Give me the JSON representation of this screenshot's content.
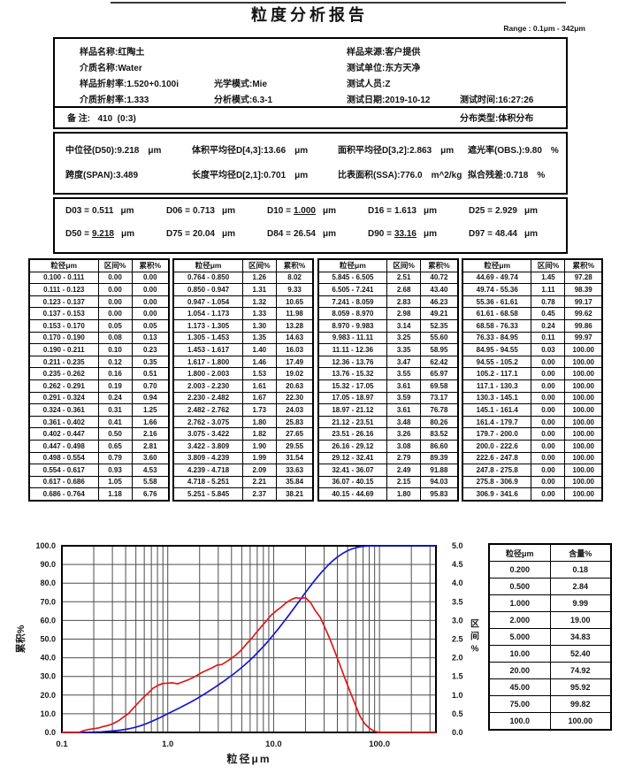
{
  "header": {
    "title": "粒度分析报告",
    "range": "Range : 0.1μm - 342μm"
  },
  "info1": {
    "sample_name": "样品名称:红陶土",
    "sample_source": "样品来源:客户提供",
    "medium_name": "介质名称:Water",
    "test_unit": "测试单位:东方天净",
    "sample_ri": "样品折射率:1.520+0.100i",
    "optical_mode": "光学模式:Mie",
    "tester": "测试人员:Z",
    "medium_ri": "介质折射率:1.333",
    "analysis_mode": "分析模式:6.3-1",
    "test_date": "测试日期:2019-10-12",
    "test_time": "测试时间:16:27:26",
    "remark": "备 注:   410  (0:3)",
    "dist_type": "分布类型:体积分布"
  },
  "metrics": [
    {
      "text": "中位径(D50):9.218",
      "unit": "μm"
    },
    {
      "text": "体积平均径D[4,3]:13.66",
      "unit": "μm"
    },
    {
      "text": "面积平均径D[3,2]:2.863",
      "unit": "μm"
    },
    {
      "text": "遮光率(OBS.):9.80",
      "unit": "%"
    },
    {
      "text": "跨度(SPAN):3.489",
      "unit": ""
    },
    {
      "text": "长度平均径D[2,1]:0.701",
      "unit": "μm"
    },
    {
      "text": "比表面积(SSA):776.0",
      "unit": "m^2/kg"
    },
    {
      "text": "拟合残差:0.718",
      "unit": "%"
    }
  ],
  "dvalues": [
    {
      "label": "D03 =",
      "value": "0.511",
      "unit": "μm",
      "underline": false
    },
    {
      "label": "D06 =",
      "value": "0.713",
      "unit": "μm",
      "underline": false
    },
    {
      "label": "D10 =",
      "value": "1.000",
      "unit": "μm",
      "underline": true
    },
    {
      "label": "D16 =",
      "value": "1.613",
      "unit": "μm",
      "underline": false
    },
    {
      "label": "D25 =",
      "value": "2.929",
      "unit": "μm",
      "underline": false
    },
    {
      "label": "D50 =",
      "value": "9.218",
      "unit": "μm",
      "underline": true
    },
    {
      "label": "D75 =",
      "value": "20.04",
      "unit": "μm",
      "underline": false
    },
    {
      "label": "D84 =",
      "value": "26.54",
      "unit": "μm",
      "underline": false
    },
    {
      "label": "D90 =",
      "value": "33.16",
      "unit": "μm",
      "underline": true
    },
    {
      "label": "D97 =",
      "value": "48.44",
      "unit": "μm",
      "underline": false
    }
  ],
  "distribution_table": {
    "headers": [
      "粒径μm",
      "区间%",
      "累积%"
    ],
    "groups": [
      [
        [
          "0.100 - 0.111",
          "0.00",
          "0.00"
        ],
        [
          "0.111 - 0.123",
          "0.00",
          "0.00"
        ],
        [
          "0.123 - 0.137",
          "0.00",
          "0.00"
        ],
        [
          "0.137 - 0.153",
          "0.00",
          "0.00"
        ],
        [
          "0.153 - 0.170",
          "0.05",
          "0.05"
        ],
        [
          "0.170 - 0.190",
          "0.08",
          "0.13"
        ],
        [
          "0.190 - 0.211",
          "0.10",
          "0.23"
        ],
        [
          "0.211 - 0.235",
          "0.12",
          "0.35"
        ],
        [
          "0.235 - 0.262",
          "0.16",
          "0.51"
        ],
        [
          "0.262 - 0.291",
          "0.19",
          "0.70"
        ],
        [
          "0.291 - 0.324",
          "0.24",
          "0.94"
        ],
        [
          "0.324 - 0.361",
          "0.31",
          "1.25"
        ],
        [
          "0.361 - 0.402",
          "0.41",
          "1.66"
        ],
        [
          "0.402 - 0.447",
          "0.50",
          "2.16"
        ],
        [
          "0.447 - 0.498",
          "0.65",
          "2.81"
        ],
        [
          "0.498 - 0.554",
          "0.79",
          "3.60"
        ],
        [
          "0.554 - 0.617",
          "0.93",
          "4.53"
        ],
        [
          "0.617 - 0.686",
          "1.05",
          "5.58"
        ],
        [
          "0.686 - 0.764",
          "1.18",
          "6.76"
        ]
      ],
      [
        [
          "0.764 - 0.850",
          "1.26",
          "8.02"
        ],
        [
          "0.850 - 0.947",
          "1.31",
          "9.33"
        ],
        [
          "0.947 - 1.054",
          "1.32",
          "10.65"
        ],
        [
          "1.054 - 1.173",
          "1.33",
          "11.98"
        ],
        [
          "1.173 - 1.305",
          "1.30",
          "13.28"
        ],
        [
          "1.305 - 1.453",
          "1.35",
          "14.63"
        ],
        [
          "1.453 - 1.617",
          "1.40",
          "16.03"
        ],
        [
          "1.617 - 1.800",
          "1.46",
          "17.49"
        ],
        [
          "1.800 - 2.003",
          "1.53",
          "19.02"
        ],
        [
          "2.003 - 2.230",
          "1.61",
          "20.63"
        ],
        [
          "2.230 - 2.482",
          "1.67",
          "22.30"
        ],
        [
          "2.482 - 2.762",
          "1.73",
          "24.03"
        ],
        [
          "2.762 - 3.075",
          "1.80",
          "25.83"
        ],
        [
          "3.075 - 3.422",
          "1.82",
          "27.65"
        ],
        [
          "3.422 - 3.809",
          "1.90",
          "29.55"
        ],
        [
          "3.809 - 4.239",
          "1.99",
          "31.54"
        ],
        [
          "4.239 - 4.718",
          "2.09",
          "33.63"
        ],
        [
          "4.718 - 5.251",
          "2.21",
          "35.84"
        ],
        [
          "5.251 - 5.845",
          "2.37",
          "38.21"
        ]
      ],
      [
        [
          "5.845 - 6.505",
          "2.51",
          "40.72"
        ],
        [
          "6.505 - 7.241",
          "2.68",
          "43.40"
        ],
        [
          "7.241 - 8.059",
          "2.83",
          "46.23"
        ],
        [
          "8.059 - 8.970",
          "2.98",
          "49.21"
        ],
        [
          "8.970 - 9.983",
          "3.14",
          "52.35"
        ],
        [
          "9.983 - 11.11",
          "3.25",
          "55.60"
        ],
        [
          "11.11 - 12.36",
          "3.35",
          "58.95"
        ],
        [
          "12.36 - 13.76",
          "3.47",
          "62.42"
        ],
        [
          "13.76 - 15.32",
          "3.55",
          "65.97"
        ],
        [
          "15.32 - 17.05",
          "3.61",
          "69.58"
        ],
        [
          "17.05 - 18.97",
          "3.59",
          "73.17"
        ],
        [
          "18.97 - 21.12",
          "3.61",
          "76.78"
        ],
        [
          "21.12 - 23.51",
          "3.48",
          "80.26"
        ],
        [
          "23.51 - 26.16",
          "3.26",
          "83.52"
        ],
        [
          "26.16 - 29.12",
          "3.08",
          "86.60"
        ],
        [
          "29.12 - 32.41",
          "2.79",
          "89.39"
        ],
        [
          "32.41 - 36.07",
          "2.49",
          "91.88"
        ],
        [
          "36.07 - 40.15",
          "2.15",
          "94.03"
        ],
        [
          "40.15 - 44.69",
          "1.80",
          "95.83"
        ]
      ],
      [
        [
          "44.69 - 49.74",
          "1.45",
          "97.28"
        ],
        [
          "49.74 - 55.36",
          "1.11",
          "98.39"
        ],
        [
          "55.36 - 61.61",
          "0.78",
          "99.17"
        ],
        [
          "61.61 - 68.58",
          "0.45",
          "99.62"
        ],
        [
          "68.58 - 76.33",
          "0.24",
          "99.86"
        ],
        [
          "76.33 - 84.95",
          "0.11",
          "99.97"
        ],
        [
          "84.95 - 94.55",
          "0.03",
          "100.00"
        ],
        [
          "94.55 - 105.2",
          "0.00",
          "100.00"
        ],
        [
          "105.2 - 117.1",
          "0.00",
          "100.00"
        ],
        [
          "117.1 - 130.3",
          "0.00",
          "100.00"
        ],
        [
          "130.3 - 145.1",
          "0.00",
          "100.00"
        ],
        [
          "145.1 - 161.4",
          "0.00",
          "100.00"
        ],
        [
          "161.4 - 179.7",
          "0.00",
          "100.00"
        ],
        [
          "179.7 - 200.0",
          "0.00",
          "100.00"
        ],
        [
          "200.0 - 222.6",
          "0.00",
          "100.00"
        ],
        [
          "222.6 - 247.8",
          "0.00",
          "100.00"
        ],
        [
          "247.8 - 275.8",
          "0.00",
          "100.00"
        ],
        [
          "275.8 - 306.9",
          "0.00",
          "100.00"
        ],
        [
          "306.9 - 341.6",
          "0.00",
          "100.00"
        ]
      ]
    ]
  },
  "content_table": {
    "headers": [
      "粒径μm",
      "含量%"
    ],
    "rows": [
      [
        "0.200",
        "0.18"
      ],
      [
        "0.500",
        "2.84"
      ],
      [
        "1.000",
        "9.99"
      ],
      [
        "2.000",
        "19.00"
      ],
      [
        "5.000",
        "34.83"
      ],
      [
        "10.00",
        "52.40"
      ],
      [
        "20.00",
        "74.92"
      ],
      [
        "45.00",
        "95.92"
      ],
      [
        "75.00",
        "99.82"
      ],
      [
        "100.0",
        "100.00"
      ]
    ]
  },
  "chart_data": {
    "type": "line",
    "x_scale": "log",
    "xlim": [
      0.1,
      341.6
    ],
    "xlabel": "粒径μm",
    "ylabel_left": "累积%",
    "ylabel_right": "区间%",
    "ylim_left": [
      0,
      100
    ],
    "ylim_right": [
      0,
      5
    ],
    "grid": true,
    "x_ticks": [
      0.1,
      1,
      10,
      100
    ],
    "x_tick_labels": [
      "0.1",
      "1.0",
      "10.0",
      "100.0"
    ],
    "left_tick_labels": [
      "0.0",
      "10.0",
      "20.0",
      "30.0",
      "40.0",
      "50.0",
      "60.0",
      "70.0",
      "80.0",
      "90.0",
      "100.0"
    ],
    "right_tick_labels": [
      "0.0",
      "0.5",
      "1.0",
      "1.5",
      "2.0",
      "2.5",
      "3.0",
      "3.5",
      "4.0",
      "4.5",
      "5.0"
    ],
    "bin_edges": [
      0.1,
      0.111,
      0.123,
      0.137,
      0.153,
      0.17,
      0.19,
      0.211,
      0.235,
      0.262,
      0.291,
      0.324,
      0.361,
      0.402,
      0.447,
      0.498,
      0.554,
      0.617,
      0.686,
      0.764,
      0.85,
      0.947,
      1.054,
      1.173,
      1.305,
      1.453,
      1.617,
      1.8,
      2.003,
      2.23,
      2.482,
      2.762,
      3.075,
      3.422,
      3.809,
      4.239,
      4.718,
      5.251,
      5.845,
      6.505,
      7.241,
      8.059,
      8.97,
      9.983,
      11.11,
      12.36,
      13.76,
      15.32,
      17.05,
      18.97,
      21.12,
      23.51,
      26.16,
      29.12,
      32.41,
      36.07,
      40.15,
      44.69,
      49.74,
      55.36,
      61.61,
      68.58,
      76.33,
      84.95,
      94.55,
      105.2,
      117.1,
      130.3,
      145.1,
      161.4,
      179.7,
      200.0,
      222.6,
      247.8,
      275.8,
      306.9,
      341.6
    ],
    "series": [
      {
        "name": "累积%",
        "axis": "left",
        "color": "#1818cc",
        "values": [
          0.0,
          0.0,
          0.0,
          0.0,
          0.05,
          0.13,
          0.23,
          0.35,
          0.51,
          0.7,
          0.94,
          1.25,
          1.66,
          2.16,
          2.81,
          3.6,
          4.53,
          5.58,
          6.76,
          8.02,
          9.33,
          10.65,
          11.98,
          13.28,
          14.63,
          16.03,
          17.49,
          19.02,
          20.63,
          22.3,
          24.03,
          25.83,
          27.65,
          29.55,
          31.54,
          33.63,
          35.84,
          38.21,
          40.72,
          43.4,
          46.23,
          49.21,
          52.35,
          55.6,
          58.95,
          62.42,
          65.97,
          69.58,
          73.17,
          76.78,
          80.26,
          83.52,
          86.6,
          89.39,
          91.88,
          94.03,
          95.83,
          97.28,
          98.39,
          99.17,
          99.62,
          99.86,
          99.97,
          100.0,
          100.0,
          100.0,
          100.0,
          100.0,
          100.0,
          100.0,
          100.0,
          100.0,
          100.0,
          100.0,
          100.0,
          100.0
        ]
      },
      {
        "name": "区间%",
        "axis": "right",
        "color": "#e01818",
        "values": [
          0.0,
          0.0,
          0.0,
          0.0,
          0.05,
          0.08,
          0.1,
          0.12,
          0.16,
          0.19,
          0.24,
          0.31,
          0.41,
          0.5,
          0.65,
          0.79,
          0.93,
          1.05,
          1.18,
          1.26,
          1.31,
          1.32,
          1.33,
          1.3,
          1.35,
          1.4,
          1.46,
          1.53,
          1.61,
          1.67,
          1.73,
          1.8,
          1.82,
          1.9,
          1.99,
          2.09,
          2.21,
          2.37,
          2.51,
          2.68,
          2.83,
          2.98,
          3.14,
          3.25,
          3.35,
          3.47,
          3.55,
          3.61,
          3.59,
          3.61,
          3.48,
          3.26,
          3.08,
          2.79,
          2.49,
          2.15,
          1.8,
          1.45,
          1.11,
          0.78,
          0.45,
          0.24,
          0.11,
          0.03,
          0.0,
          0.0,
          0.0,
          0.0,
          0.0,
          0.0,
          0.0,
          0.0,
          0.0,
          0.0,
          0.0,
          0.0
        ]
      }
    ],
    "grid_color": "#4d4d4d"
  }
}
